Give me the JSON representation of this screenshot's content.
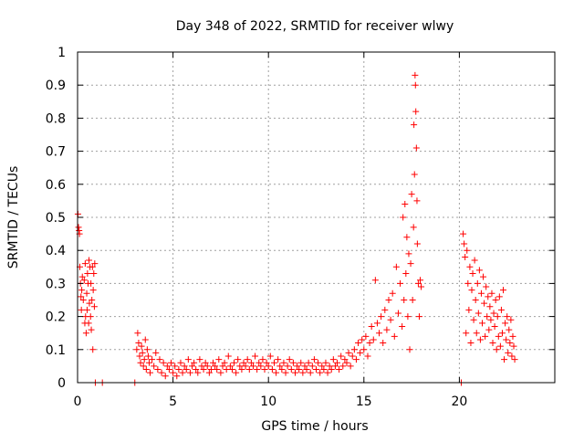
{
  "chart_data": {
    "type": "scatter",
    "title": "Day 348 of 2022, SRMTID for receiver wlwy",
    "xlabel": "GPS time / hours",
    "ylabel": "SRMTID / TECUs",
    "xlim": [
      0,
      25
    ],
    "ylim": [
      0,
      1
    ],
    "xticks": [
      0,
      5,
      10,
      15,
      20
    ],
    "xtick_labels": [
      "0",
      "5",
      "10",
      "15",
      "20"
    ],
    "yticks": [
      0,
      0.1,
      0.2,
      0.3,
      0.4,
      0.5,
      0.6,
      0.7,
      0.8,
      0.9,
      1
    ],
    "ytick_labels": [
      "0",
      "0.1",
      "0.2",
      "0.3",
      "0.4",
      "0.5",
      "0.6",
      "0.7",
      "0.8",
      "0.9",
      "1"
    ],
    "grid": true,
    "marker": "+",
    "color": "#ff0000",
    "series": [
      {
        "name": "SRMTID",
        "points": [
          [
            0.02,
            0.51
          ],
          [
            0.05,
            0.47
          ],
          [
            0.08,
            0.46
          ],
          [
            0.1,
            0.45
          ],
          [
            0.12,
            0.35
          ],
          [
            0.15,
            0.3
          ],
          [
            0.18,
            0.26
          ],
          [
            0.2,
            0.22
          ],
          [
            0.22,
            0.28
          ],
          [
            0.25,
            0.32
          ],
          [
            0.3,
            0.25
          ],
          [
            0.35,
            0.31
          ],
          [
            0.38,
            0.18
          ],
          [
            0.4,
            0.36
          ],
          [
            0.42,
            0.2
          ],
          [
            0.45,
            0.15
          ],
          [
            0.48,
            0.27
          ],
          [
            0.5,
            0.22
          ],
          [
            0.52,
            0.33
          ],
          [
            0.55,
            0.3
          ],
          [
            0.58,
            0.18
          ],
          [
            0.6,
            0.37
          ],
          [
            0.62,
            0.24
          ],
          [
            0.65,
            0.35
          ],
          [
            0.68,
            0.2
          ],
          [
            0.7,
            0.3
          ],
          [
            0.72,
            0.16
          ],
          [
            0.75,
            0.25
          ],
          [
            0.78,
            0.35
          ],
          [
            0.8,
            0.1
          ],
          [
            0.82,
            0.28
          ],
          [
            0.85,
            0.33
          ],
          [
            0.88,
            0.23
          ],
          [
            0.9,
            0.36
          ],
          [
            0.93,
            0.0
          ],
          [
            1.3,
            0.0
          ],
          [
            3.0,
            0.0
          ],
          [
            3.1,
            0.1
          ],
          [
            3.15,
            0.15
          ],
          [
            3.2,
            0.12
          ],
          [
            3.25,
            0.08
          ],
          [
            3.3,
            0.06
          ],
          [
            3.35,
            0.11
          ],
          [
            3.4,
            0.09
          ],
          [
            3.45,
            0.05
          ],
          [
            3.5,
            0.07
          ],
          [
            3.55,
            0.13
          ],
          [
            3.6,
            0.04
          ],
          [
            3.65,
            0.1
          ],
          [
            3.7,
            0.08
          ],
          [
            3.75,
            0.06
          ],
          [
            3.8,
            0.03
          ],
          [
            3.9,
            0.07
          ],
          [
            4.0,
            0.05
          ],
          [
            4.1,
            0.09
          ],
          [
            4.2,
            0.04
          ],
          [
            4.3,
            0.07
          ],
          [
            4.4,
            0.03
          ],
          [
            4.5,
            0.06
          ],
          [
            4.6,
            0.02
          ],
          [
            4.7,
            0.05
          ],
          [
            4.8,
            0.04
          ],
          [
            4.9,
            0.06
          ],
          [
            5.0,
            0.03
          ],
          [
            5.1,
            0.05
          ],
          [
            5.2,
            0.02
          ],
          [
            5.3,
            0.04
          ],
          [
            5.4,
            0.06
          ],
          [
            5.5,
            0.03
          ],
          [
            5.6,
            0.05
          ],
          [
            5.7,
            0.04
          ],
          [
            5.8,
            0.07
          ],
          [
            5.9,
            0.03
          ],
          [
            6.0,
            0.05
          ],
          [
            6.1,
            0.06
          ],
          [
            6.2,
            0.04
          ],
          [
            6.3,
            0.03
          ],
          [
            6.4,
            0.07
          ],
          [
            6.5,
            0.05
          ],
          [
            6.6,
            0.04
          ],
          [
            6.7,
            0.06
          ],
          [
            6.8,
            0.05
          ],
          [
            6.9,
            0.03
          ],
          [
            7.0,
            0.04
          ],
          [
            7.1,
            0.06
          ],
          [
            7.2,
            0.05
          ],
          [
            7.3,
            0.04
          ],
          [
            7.4,
            0.07
          ],
          [
            7.5,
            0.03
          ],
          [
            7.6,
            0.05
          ],
          [
            7.7,
            0.06
          ],
          [
            7.8,
            0.04
          ],
          [
            7.9,
            0.08
          ],
          [
            8.0,
            0.05
          ],
          [
            8.1,
            0.04
          ],
          [
            8.2,
            0.06
          ],
          [
            8.3,
            0.03
          ],
          [
            8.4,
            0.07
          ],
          [
            8.5,
            0.05
          ],
          [
            8.6,
            0.04
          ],
          [
            8.7,
            0.06
          ],
          [
            8.8,
            0.05
          ],
          [
            8.9,
            0.07
          ],
          [
            9.0,
            0.04
          ],
          [
            9.1,
            0.06
          ],
          [
            9.2,
            0.05
          ],
          [
            9.3,
            0.08
          ],
          [
            9.4,
            0.04
          ],
          [
            9.5,
            0.06
          ],
          [
            9.6,
            0.05
          ],
          [
            9.7,
            0.07
          ],
          [
            9.8,
            0.04
          ],
          [
            9.9,
            0.06
          ],
          [
            10.0,
            0.05
          ],
          [
            10.1,
            0.08
          ],
          [
            10.2,
            0.04
          ],
          [
            10.3,
            0.06
          ],
          [
            10.4,
            0.03
          ],
          [
            10.5,
            0.07
          ],
          [
            10.6,
            0.05
          ],
          [
            10.7,
            0.04
          ],
          [
            10.8,
            0.06
          ],
          [
            10.9,
            0.03
          ],
          [
            11.0,
            0.05
          ],
          [
            11.1,
            0.07
          ],
          [
            11.2,
            0.04
          ],
          [
            11.3,
            0.06
          ],
          [
            11.4,
            0.03
          ],
          [
            11.5,
            0.05
          ],
          [
            11.6,
            0.04
          ],
          [
            11.7,
            0.06
          ],
          [
            11.8,
            0.03
          ],
          [
            11.9,
            0.05
          ],
          [
            12.0,
            0.04
          ],
          [
            12.1,
            0.06
          ],
          [
            12.2,
            0.03
          ],
          [
            12.3,
            0.05
          ],
          [
            12.4,
            0.07
          ],
          [
            12.5,
            0.04
          ],
          [
            12.6,
            0.06
          ],
          [
            12.7,
            0.03
          ],
          [
            12.8,
            0.05
          ],
          [
            12.9,
            0.04
          ],
          [
            13.0,
            0.06
          ],
          [
            13.1,
            0.03
          ],
          [
            13.2,
            0.05
          ],
          [
            13.3,
            0.04
          ],
          [
            13.4,
            0.07
          ],
          [
            13.5,
            0.05
          ],
          [
            13.6,
            0.06
          ],
          [
            13.7,
            0.04
          ],
          [
            13.8,
            0.08
          ],
          [
            13.9,
            0.05
          ],
          [
            14.0,
            0.07
          ],
          [
            14.1,
            0.06
          ],
          [
            14.2,
            0.09
          ],
          [
            14.3,
            0.05
          ],
          [
            14.4,
            0.08
          ],
          [
            14.5,
            0.1
          ],
          [
            14.6,
            0.07
          ],
          [
            14.7,
            0.12
          ],
          [
            14.8,
            0.09
          ],
          [
            14.9,
            0.13
          ],
          [
            15.0,
            0.1
          ],
          [
            15.1,
            0.14
          ],
          [
            15.2,
            0.08
          ],
          [
            15.3,
            0.12
          ],
          [
            15.4,
            0.17
          ],
          [
            15.5,
            0.13
          ],
          [
            15.6,
            0.31
          ],
          [
            15.7,
            0.18
          ],
          [
            15.8,
            0.15
          ],
          [
            15.9,
            0.2
          ],
          [
            16.0,
            0.12
          ],
          [
            16.1,
            0.22
          ],
          [
            16.2,
            0.16
          ],
          [
            16.3,
            0.25
          ],
          [
            16.4,
            0.19
          ],
          [
            16.5,
            0.27
          ],
          [
            16.6,
            0.14
          ],
          [
            16.7,
            0.35
          ],
          [
            16.8,
            0.21
          ],
          [
            16.9,
            0.3
          ],
          [
            17.0,
            0.17
          ],
          [
            17.05,
            0.5
          ],
          [
            17.1,
            0.25
          ],
          [
            17.15,
            0.54
          ],
          [
            17.2,
            0.33
          ],
          [
            17.25,
            0.44
          ],
          [
            17.3,
            0.2
          ],
          [
            17.35,
            0.39
          ],
          [
            17.4,
            0.1
          ],
          [
            17.45,
            0.36
          ],
          [
            17.5,
            0.57
          ],
          [
            17.55,
            0.25
          ],
          [
            17.6,
            0.47
          ],
          [
            17.62,
            0.78
          ],
          [
            17.65,
            0.63
          ],
          [
            17.68,
            0.93
          ],
          [
            17.7,
            0.9
          ],
          [
            17.72,
            0.82
          ],
          [
            17.75,
            0.71
          ],
          [
            17.78,
            0.55
          ],
          [
            17.8,
            0.42
          ],
          [
            17.85,
            0.3
          ],
          [
            17.9,
            0.2
          ],
          [
            17.95,
            0.31
          ],
          [
            18.0,
            0.29
          ],
          [
            20.1,
            0.0
          ],
          [
            20.2,
            0.45
          ],
          [
            20.25,
            0.42
          ],
          [
            20.3,
            0.38
          ],
          [
            20.35,
            0.15
          ],
          [
            20.4,
            0.4
          ],
          [
            20.45,
            0.3
          ],
          [
            20.5,
            0.22
          ],
          [
            20.55,
            0.35
          ],
          [
            20.6,
            0.12
          ],
          [
            20.65,
            0.28
          ],
          [
            20.7,
            0.33
          ],
          [
            20.75,
            0.19
          ],
          [
            20.8,
            0.37
          ],
          [
            20.85,
            0.25
          ],
          [
            20.9,
            0.15
          ],
          [
            20.95,
            0.3
          ],
          [
            21.0,
            0.21
          ],
          [
            21.05,
            0.34
          ],
          [
            21.1,
            0.13
          ],
          [
            21.15,
            0.27
          ],
          [
            21.2,
            0.18
          ],
          [
            21.25,
            0.32
          ],
          [
            21.3,
            0.24
          ],
          [
            21.35,
            0.14
          ],
          [
            21.4,
            0.29
          ],
          [
            21.45,
            0.2
          ],
          [
            21.5,
            0.26
          ],
          [
            21.55,
            0.16
          ],
          [
            21.6,
            0.23
          ],
          [
            21.65,
            0.19
          ],
          [
            21.7,
            0.27
          ],
          [
            21.75,
            0.12
          ],
          [
            21.8,
            0.21
          ],
          [
            21.85,
            0.17
          ],
          [
            21.9,
            0.25
          ],
          [
            21.95,
            0.1
          ],
          [
            22.0,
            0.2
          ],
          [
            22.05,
            0.14
          ],
          [
            22.1,
            0.26
          ],
          [
            22.15,
            0.11
          ],
          [
            22.2,
            0.22
          ],
          [
            22.25,
            0.15
          ],
          [
            22.3,
            0.28
          ],
          [
            22.35,
            0.07
          ],
          [
            22.4,
            0.18
          ],
          [
            22.45,
            0.13
          ],
          [
            22.5,
            0.2
          ],
          [
            22.55,
            0.09
          ],
          [
            22.6,
            0.16
          ],
          [
            22.65,
            0.12
          ],
          [
            22.7,
            0.19
          ],
          [
            22.75,
            0.08
          ],
          [
            22.8,
            0.14
          ],
          [
            22.85,
            0.11
          ],
          [
            22.9,
            0.07
          ]
        ]
      }
    ]
  }
}
